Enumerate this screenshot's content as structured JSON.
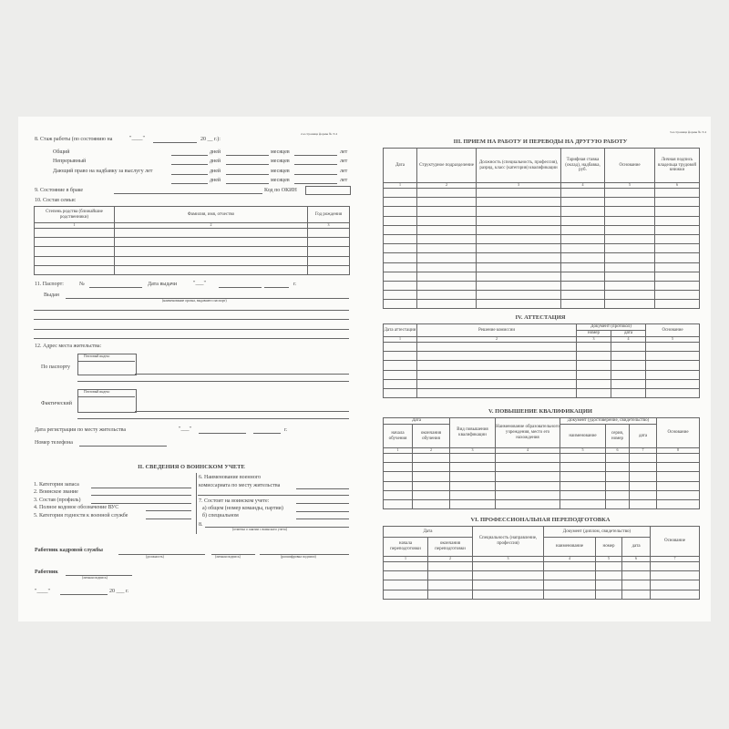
{
  "page2": {
    "page_label": "2-я страница формы № Т-2",
    "s8": {
      "title": "8. Стаж работы (по состоянию на",
      "quote": "\"____\"",
      "year": "20 __ г.):",
      "rows": [
        "Общий",
        "Непрерывный",
        "Дающий право на надбавку за выслугу лет",
        ""
      ],
      "days": "дней",
      "months": "месяцев",
      "years": "лет"
    },
    "s9": {
      "label": "9. Состояние в браке",
      "okin": "Код по ОКИН"
    },
    "s10": {
      "label": "10. Состав семьи:",
      "headers": [
        "Степень родства (ближайшие родственники)",
        "Фамилия, имя, отчество",
        "Год рождения"
      ],
      "numbers": [
        "1",
        "2",
        "3"
      ]
    },
    "s11": {
      "label": "11. Паспорт:",
      "num": "№",
      "date": "Дата выдачи",
      "quote": "\"___\"",
      "g": "г.",
      "issued": "Выдан",
      "issued_caption": "(наименование органа, выдавшего паспорт)"
    },
    "s12": {
      "label": "12. Адрес места жительства:",
      "postal": "Почтовый индекс",
      "by_passport": "По паспорту",
      "actual": "Фактический",
      "reg_date": "Дата регистрации по месту жительства",
      "quote": "\"___\"",
      "g": "г.",
      "phone": "Номер телефона"
    },
    "military": {
      "title": "II. СВЕДЕНИЯ О ВОИНСКОМ УЧЕТЕ",
      "left": [
        "1. Категория запаса",
        "2. Воинское звание",
        "3. Состав (профиль)",
        "4. Полное кодовое обозначение ВУС",
        "5. Категория годности к военной службе"
      ],
      "r6a": "6. Наименование военного",
      "r6b": "комиссариата по месту жительства",
      "r7": "7. Состоит на воинском учете:",
      "r7a": "а) общем (номер команды, партии)",
      "r7b": "б) специальном",
      "r8": "8.",
      "r8_caption": "(отметка о снятии с воинского учета)"
    },
    "signatures": {
      "hr": "Работник кадровой службы",
      "hr_caps": [
        "(должность)",
        "(личная подпись)",
        "(расшифровка подписи)"
      ],
      "worker": "Работник",
      "worker_cap": "(личная подпись)",
      "date_quote": "\"____\"",
      "date_year": "20 ___ г."
    }
  },
  "page3": {
    "page_label": "3-я страница формы № Т-2",
    "s3": {
      "title": "III. ПРИЕМ НА РАБОТУ И ПЕРЕВОДЫ НА ДРУГУЮ РАБОТУ",
      "headers": [
        "Дата",
        "Структурное подразделение",
        "Должность (специальность, профессия), разряд, класс (категория) квалификации",
        "Тарифная ставка (оклад), надбавка, руб.",
        "Основание",
        "Личная подпись владельца трудовой книжки"
      ],
      "numbers": [
        "1",
        "2",
        "3",
        "4",
        "5",
        "6"
      ]
    },
    "s4": {
      "title": "IV. АТТЕСТАЦИЯ",
      "h_date": "Дата аттестации",
      "h_decision": "Решение комиссии",
      "h_doc": "Документ (протокол)",
      "h_num": "номер",
      "h_docdate": "дата",
      "h_basis": "Основание",
      "numbers": [
        "1",
        "2",
        "3",
        "4",
        "5"
      ]
    },
    "s5": {
      "title": "V. ПОВЫШЕНИЕ КВАЛИФИКАЦИИ",
      "h_date": "Дата",
      "h_start": "начала обучения",
      "h_end": "окончания обучения",
      "h_type": "Вид повышения квалификации",
      "h_inst": "Наименование образовательного учреждения, место его нахождения",
      "h_doc": "Документ (удостоверение, свидетельство)",
      "h_name": "наименование",
      "h_series": "серия, номер",
      "h_docdate": "дата",
      "h_basis": "Основание",
      "numbers": [
        "1",
        "2",
        "3",
        "4",
        "5",
        "6",
        "7",
        "8"
      ]
    },
    "s6": {
      "title": "VI. ПРОФЕССИОНАЛЬНАЯ ПЕРЕПОДГОТОВКА",
      "h_date": "Дата",
      "h_start": "начала переподготовки",
      "h_end": "окончания переподготовки",
      "h_spec": "Специальность (направление, профессия)",
      "h_doc": "Документ (диплом, свидетельство)",
      "h_name": "наименование",
      "h_num": "номер",
      "h_docdate": "дата",
      "h_basis": "Основание",
      "numbers": [
        "1",
        "2",
        "3",
        "4",
        "5",
        "6",
        "7"
      ]
    }
  }
}
